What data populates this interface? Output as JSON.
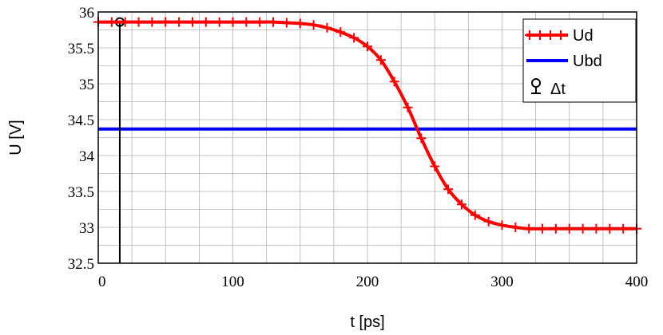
{
  "chart_data": {
    "type": "line",
    "xlabel": "t [ps]",
    "ylabel": "U [V]",
    "xlim": [
      0,
      400
    ],
    "ylim": [
      32.5,
      36
    ],
    "xticks": [
      0,
      100,
      200,
      300,
      400
    ],
    "yticks": [
      32.5,
      33,
      33.5,
      34,
      34.5,
      35,
      35.5,
      36
    ],
    "xtick_labels": [
      "0",
      "100",
      "200",
      "300",
      "400"
    ],
    "ytick_labels": [
      "32.5",
      "33",
      "33.5",
      "34",
      "34.5",
      "35",
      "35.5",
      "36"
    ],
    "grid": true,
    "legend_position": "top-right",
    "series": [
      {
        "name": "Ud",
        "color": "#ff0000",
        "marker": "plus",
        "x": [
          0,
          10,
          20,
          30,
          40,
          50,
          60,
          70,
          80,
          90,
          100,
          110,
          120,
          130,
          140,
          150,
          160,
          170,
          180,
          190,
          200,
          210,
          220,
          230,
          240,
          250,
          260,
          270,
          280,
          290,
          300,
          310,
          320,
          330,
          340,
          350,
          360,
          370,
          380,
          390,
          400
        ],
        "y": [
          35.86,
          35.86,
          35.86,
          35.86,
          35.86,
          35.86,
          35.86,
          35.86,
          35.86,
          35.86,
          35.86,
          35.86,
          35.86,
          35.86,
          35.85,
          35.84,
          35.82,
          35.78,
          35.72,
          35.64,
          35.52,
          35.33,
          35.03,
          34.67,
          34.24,
          33.85,
          33.53,
          33.32,
          33.17,
          33.08,
          33.03,
          33.0,
          32.98,
          32.98,
          32.98,
          32.98,
          32.98,
          32.98,
          32.98,
          32.98,
          32.98
        ]
      },
      {
        "name": "Ubd",
        "color": "#0000ff",
        "x": [
          0,
          400
        ],
        "y": [
          34.37,
          34.37
        ]
      },
      {
        "name": "Δt",
        "color": "#000000",
        "marker": "circle",
        "x": [
          16,
          16
        ],
        "y": [
          32.5,
          35.86
        ]
      }
    ]
  }
}
